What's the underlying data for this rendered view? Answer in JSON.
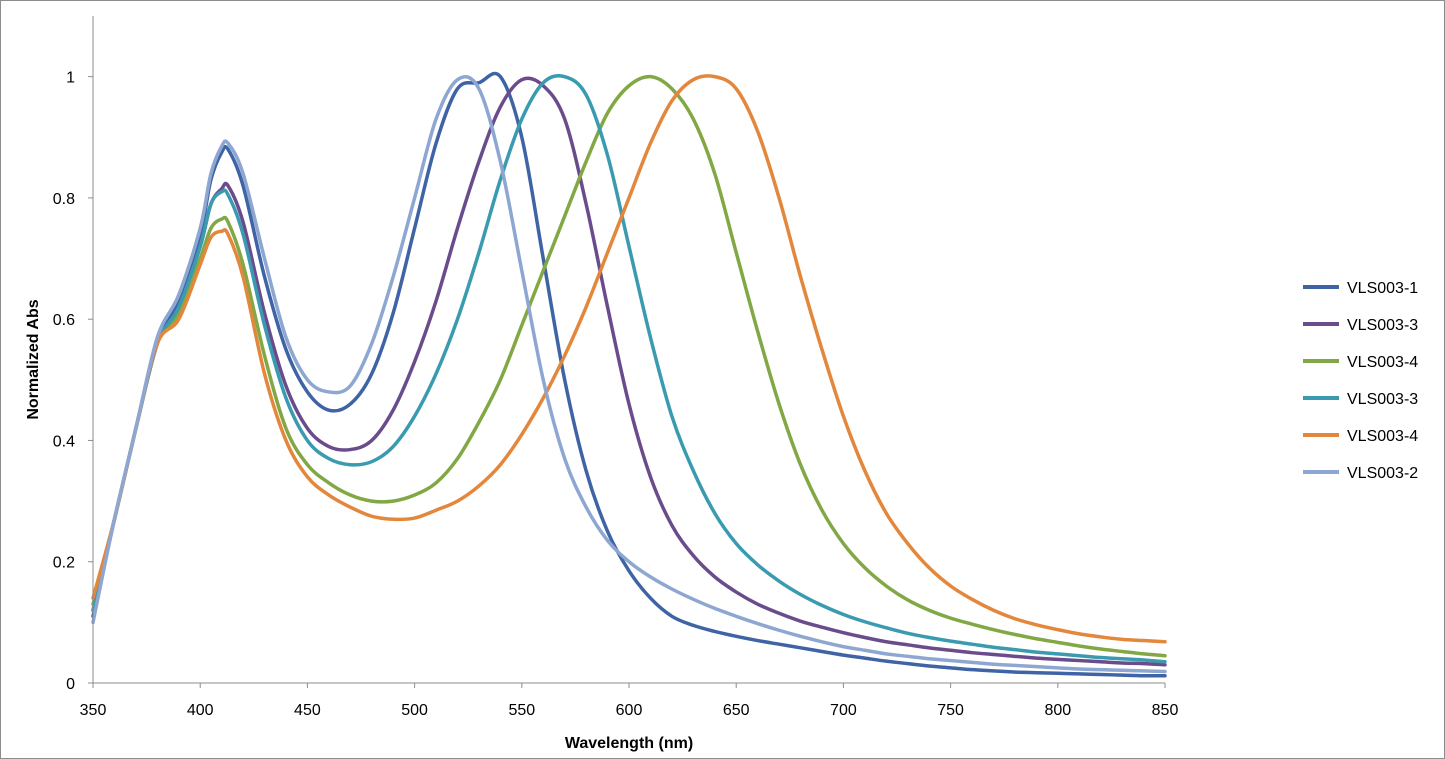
{
  "chart_data": {
    "type": "line",
    "xlabel": "Wavelength (nm)",
    "ylabel": "Normalized Abs",
    "xlim": [
      350,
      850
    ],
    "ylim": [
      0,
      1.1
    ],
    "x_ticks": [
      350,
      400,
      450,
      500,
      550,
      600,
      650,
      700,
      750,
      800,
      850
    ],
    "y_ticks": [
      0,
      0.2,
      0.4,
      0.6,
      0.8,
      1
    ],
    "y_tick_labels": [
      "0",
      "0.2",
      "0.4",
      "0.6",
      "0.8",
      "1"
    ],
    "grid": false,
    "legend_position": "right",
    "x": [
      350,
      360,
      370,
      380,
      390,
      400,
      405,
      410,
      413,
      420,
      430,
      440,
      450,
      460,
      470,
      480,
      490,
      500,
      510,
      520,
      530,
      540,
      550,
      560,
      570,
      580,
      590,
      600,
      610,
      620,
      630,
      640,
      650,
      660,
      670,
      680,
      690,
      700,
      710,
      720,
      730,
      740,
      750,
      760,
      770,
      780,
      790,
      800,
      810,
      820,
      830,
      840,
      850
    ],
    "series": [
      {
        "name": "VLS003-1",
        "color": "#3f64a5",
        "values": [
          0.11,
          0.27,
          0.42,
          0.56,
          0.63,
          0.74,
          0.83,
          0.875,
          0.88,
          0.82,
          0.67,
          0.55,
          0.48,
          0.45,
          0.46,
          0.51,
          0.61,
          0.75,
          0.89,
          0.98,
          0.99,
          1.0,
          0.9,
          0.7,
          0.5,
          0.35,
          0.25,
          0.185,
          0.14,
          0.11,
          0.095,
          0.085,
          0.077,
          0.07,
          0.064,
          0.058,
          0.052,
          0.046,
          0.041,
          0.036,
          0.032,
          0.028,
          0.025,
          0.022,
          0.02,
          0.018,
          0.017,
          0.016,
          0.015,
          0.014,
          0.013,
          0.012,
          0.012
        ]
      },
      {
        "name": "VLS003-3",
        "color": "#6a4c8c",
        "values": [
          0.12,
          0.27,
          0.42,
          0.56,
          0.62,
          0.72,
          0.79,
          0.815,
          0.82,
          0.76,
          0.61,
          0.49,
          0.42,
          0.39,
          0.385,
          0.4,
          0.45,
          0.53,
          0.63,
          0.75,
          0.86,
          0.95,
          0.995,
          0.985,
          0.93,
          0.79,
          0.62,
          0.46,
          0.34,
          0.26,
          0.21,
          0.175,
          0.15,
          0.13,
          0.115,
          0.102,
          0.092,
          0.083,
          0.075,
          0.068,
          0.063,
          0.058,
          0.054,
          0.05,
          0.047,
          0.044,
          0.041,
          0.039,
          0.037,
          0.035,
          0.033,
          0.032,
          0.03
        ]
      },
      {
        "name": "VLS003-4",
        "color": "#82a845",
        "values": [
          0.13,
          0.27,
          0.42,
          0.56,
          0.61,
          0.7,
          0.75,
          0.765,
          0.76,
          0.69,
          0.54,
          0.42,
          0.36,
          0.33,
          0.31,
          0.3,
          0.3,
          0.31,
          0.33,
          0.37,
          0.43,
          0.5,
          0.59,
          0.68,
          0.77,
          0.86,
          0.94,
          0.985,
          1.0,
          0.98,
          0.93,
          0.84,
          0.71,
          0.58,
          0.46,
          0.36,
          0.285,
          0.23,
          0.19,
          0.16,
          0.137,
          0.12,
          0.107,
          0.097,
          0.088,
          0.08,
          0.073,
          0.067,
          0.061,
          0.056,
          0.052,
          0.048,
          0.045
        ]
      },
      {
        "name": "VLS003-3",
        "color": "#3a9bb0",
        "values": [
          0.12,
          0.27,
          0.42,
          0.56,
          0.62,
          0.72,
          0.79,
          0.81,
          0.805,
          0.74,
          0.59,
          0.47,
          0.4,
          0.37,
          0.36,
          0.365,
          0.39,
          0.44,
          0.51,
          0.6,
          0.71,
          0.83,
          0.93,
          0.99,
          1.0,
          0.97,
          0.87,
          0.72,
          0.57,
          0.44,
          0.35,
          0.28,
          0.23,
          0.195,
          0.168,
          0.146,
          0.128,
          0.113,
          0.101,
          0.091,
          0.082,
          0.075,
          0.069,
          0.064,
          0.059,
          0.055,
          0.051,
          0.048,
          0.045,
          0.042,
          0.04,
          0.038,
          0.035
        ]
      },
      {
        "name": "VLS003-4",
        "color": "#e2873b",
        "values": [
          0.14,
          0.27,
          0.42,
          0.56,
          0.6,
          0.69,
          0.735,
          0.745,
          0.74,
          0.67,
          0.51,
          0.4,
          0.34,
          0.31,
          0.29,
          0.275,
          0.27,
          0.272,
          0.285,
          0.3,
          0.325,
          0.36,
          0.41,
          0.47,
          0.54,
          0.62,
          0.71,
          0.8,
          0.89,
          0.96,
          0.995,
          1.0,
          0.98,
          0.91,
          0.8,
          0.67,
          0.55,
          0.44,
          0.35,
          0.28,
          0.23,
          0.19,
          0.16,
          0.138,
          0.12,
          0.106,
          0.096,
          0.088,
          0.081,
          0.076,
          0.072,
          0.07,
          0.068
        ]
      },
      {
        "name": "VLS003-2",
        "color": "#8ea6d2",
        "values": [
          0.1,
          0.27,
          0.42,
          0.57,
          0.64,
          0.75,
          0.84,
          0.885,
          0.89,
          0.84,
          0.7,
          0.57,
          0.5,
          0.48,
          0.49,
          0.56,
          0.67,
          0.8,
          0.93,
          0.995,
          0.98,
          0.86,
          0.68,
          0.5,
          0.37,
          0.29,
          0.235,
          0.2,
          0.175,
          0.155,
          0.138,
          0.123,
          0.11,
          0.098,
          0.087,
          0.077,
          0.068,
          0.06,
          0.054,
          0.048,
          0.044,
          0.04,
          0.037,
          0.034,
          0.031,
          0.029,
          0.027,
          0.025,
          0.023,
          0.022,
          0.021,
          0.02,
          0.019
        ]
      }
    ]
  }
}
